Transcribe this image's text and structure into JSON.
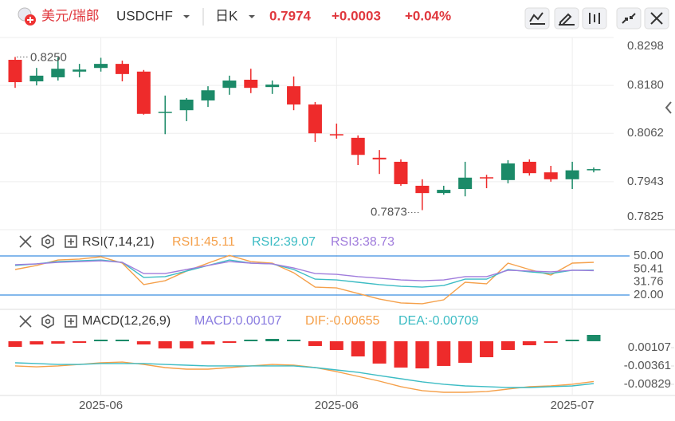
{
  "header": {
    "pair_name": "美元/瑞郎",
    "symbol": "USDCHF",
    "period": "日K",
    "price": "0.7974",
    "change": "+0.0003",
    "change_pct": "+0.04%"
  },
  "chart_data": [
    {
      "type": "candlestick",
      "open": [
        0.8243,
        0.819,
        0.82,
        0.8214,
        0.8223,
        0.8233,
        0.8214,
        0.8113,
        0.8119,
        0.8143,
        0.8174,
        0.8194,
        0.8176,
        0.8178,
        0.8133,
        0.806,
        0.8051,
        0.8002,
        0.7992,
        0.7933,
        0.7915,
        0.7925,
        0.7954,
        0.7947,
        0.7992,
        0.7966,
        0.7949,
        0.7972
      ],
      "high": [
        0.825,
        0.8223,
        0.8249,
        0.8233,
        0.8248,
        0.8241,
        0.8218,
        0.8155,
        0.8149,
        0.8178,
        0.8204,
        0.8221,
        0.8192,
        0.8202,
        0.8139,
        0.8086,
        0.8057,
        0.8021,
        0.7998,
        0.7949,
        0.7933,
        0.7992,
        0.796,
        0.7996,
        0.7998,
        0.7982,
        0.7992,
        0.7978
      ],
      "low": [
        0.8174,
        0.818,
        0.8192,
        0.82,
        0.8214,
        0.819,
        0.8108,
        0.806,
        0.8092,
        0.8127,
        0.8157,
        0.8161,
        0.8159,
        0.8119,
        0.8041,
        0.8049,
        0.7984,
        0.7962,
        0.7933,
        0.7873,
        0.7911,
        0.7907,
        0.7927,
        0.7939,
        0.7958,
        0.7943,
        0.7925,
        0.7966
      ],
      "close": [
        0.8188,
        0.8204,
        0.8221,
        0.8219,
        0.8233,
        0.8208,
        0.811,
        0.8115,
        0.8145,
        0.8168,
        0.8192,
        0.8174,
        0.8182,
        0.8133,
        0.8062,
        0.8057,
        0.8009,
        0.7998,
        0.7937,
        0.7915,
        0.7923,
        0.7953,
        0.7951,
        0.7988,
        0.7964,
        0.7949,
        0.7971,
        0.7974
      ],
      "up_color": "#1b8a68",
      "down_color": "#ee2b2b",
      "ylim": [
        0.7825,
        0.8298
      ],
      "yticks": [
        0.8298,
        {
          "value": 0.818,
          "label": "0.8180"
        },
        0.8062,
        0.7943,
        0.7825
      ],
      "annotations": [
        {
          "value": 0.825,
          "label": "0.8250"
        },
        {
          "value": 0.7873,
          "label": "0.7873"
        }
      ],
      "grid": true
    },
    {
      "type": "line",
      "title": "RSI(7,14,21)",
      "legend": [
        "RSI1:45.11",
        "RSI2:39.07",
        "RSI3:38.73"
      ],
      "series": [
        {
          "color": "#f5a04a",
          "values": [
            39.6,
            42.7,
            46.9,
            47.6,
            49.4,
            44.5,
            28.0,
            31.0,
            38.4,
            44.5,
            50.4,
            45.7,
            44.5,
            37.1,
            26.1,
            25.5,
            21.2,
            16.9,
            13.9,
            13.3,
            16.3,
            29.8,
            28.6,
            44.5,
            39.6,
            35.3,
            44.5,
            45.11
          ]
        },
        {
          "color": "#3cbcc4",
          "values": [
            42.7,
            43.9,
            45.7,
            46.3,
            46.9,
            45.1,
            33.5,
            34.1,
            38.4,
            42.7,
            46.9,
            44.5,
            43.9,
            39.6,
            32.2,
            31.6,
            29.8,
            28.0,
            26.7,
            26.1,
            27.3,
            32.2,
            32.2,
            39.6,
            37.8,
            36.5,
            39.0,
            39.07
          ]
        },
        {
          "color": "#a07cdc",
          "values": [
            43.3,
            43.9,
            45.1,
            45.7,
            46.3,
            45.1,
            36.5,
            36.5,
            39.6,
            42.7,
            45.7,
            44.5,
            43.9,
            40.8,
            36.5,
            35.9,
            34.1,
            32.9,
            31.6,
            31.0,
            31.6,
            34.1,
            34.1,
            39.0,
            38.4,
            37.8,
            39.0,
            38.73
          ]
        }
      ],
      "ylim": [
        10.8,
        68.4
      ],
      "yticks": [
        {
          "value": 50,
          "label": "50.00"
        },
        {
          "value": 20,
          "label": "20.00"
        }
      ],
      "level_color": "#3a8de0",
      "side_labels": [
        "50.41",
        "31.76"
      ]
    },
    {
      "type": "macd",
      "title": "MACD(12,26,9)",
      "legend": [
        "MACD:0.00107",
        "DIF:-0.00655",
        "DEA:-0.00709"
      ],
      "legend_colors": [
        "#8a7ce0",
        "#f5a04a",
        "#3cbcc4"
      ],
      "categories": [
        null,
        null,
        null,
        null,
        "2025-06",
        null,
        null,
        null,
        null,
        null,
        null,
        null,
        null,
        null,
        null,
        "2025-06",
        null,
        null,
        null,
        null,
        null,
        null,
        null,
        null,
        null,
        null,
        "2025-07",
        null
      ],
      "series": [
        {
          "type": "bar",
          "axis": "y2",
          "up_color": "#1b8a68",
          "down_color": "#ee2b2b",
          "values": [
            -0.00094,
            -0.00054,
            -0.0004,
            -0.00027,
            0.00027,
            0.00027,
            -0.00054,
            -0.0012,
            -0.0012,
            -0.00054,
            -0.00027,
            0.00027,
            0.0004,
            0.00027,
            -0.0008,
            -0.00147,
            -0.00255,
            -0.00375,
            -0.00442,
            -0.00456,
            -0.00415,
            -0.00362,
            -0.00268,
            -0.00147,
            -0.00067,
            -0.00027,
            0.00027,
            0.00107
          ]
        },
        {
          "color": "#f5a04a",
          "values": [
            -0.00259,
            -0.0028,
            -0.00259,
            -0.00219,
            -0.00178,
            -0.00158,
            -0.00219,
            -0.003,
            -0.00341,
            -0.00341,
            -0.003,
            -0.00259,
            -0.00219,
            -0.00239,
            -0.003,
            -0.00402,
            -0.00524,
            -0.00646,
            -0.00788,
            -0.0089,
            -0.00931,
            -0.00931,
            -0.00911,
            -0.00849,
            -0.00788,
            -0.00768,
            -0.00727,
            -0.00655
          ]
        },
        {
          "color": "#3cbcc4",
          "values": [
            -0.00178,
            -0.00198,
            -0.00219,
            -0.00219,
            -0.00198,
            -0.00198,
            -0.00198,
            -0.00219,
            -0.00239,
            -0.00259,
            -0.00259,
            -0.00259,
            -0.00259,
            -0.00259,
            -0.003,
            -0.00361,
            -0.00422,
            -0.00504,
            -0.00585,
            -0.00666,
            -0.00727,
            -0.00768,
            -0.00788,
            -0.00809,
            -0.00809,
            -0.00788,
            -0.00768,
            -0.00709
          ]
        }
      ],
      "ylim": [
        -0.00992,
        0.01043
      ],
      "yticks": [
        0.00107,
        -0.00361,
        -0.00829
      ],
      "y2lim": [
        -0.00898,
        0.00442
      ]
    }
  ]
}
